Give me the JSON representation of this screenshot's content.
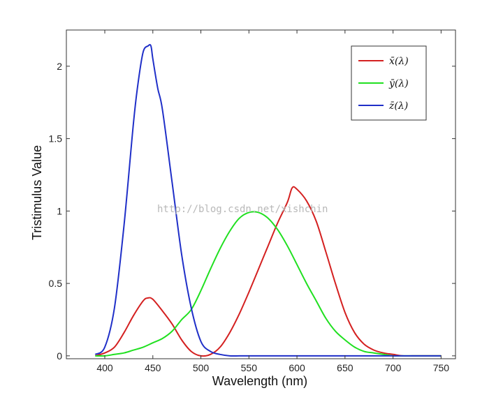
{
  "chart_data": {
    "type": "line",
    "title": "",
    "xlabel": "Wavelength (nm)",
    "ylabel": "Tristimulus Value",
    "xlim": [
      360,
      765
    ],
    "ylim": [
      -0.02,
      2.25
    ],
    "xticks": [
      400,
      450,
      500,
      550,
      600,
      650,
      700,
      750
    ],
    "yticks": [
      0,
      0.5,
      1,
      1.5,
      2
    ],
    "ytick_labels": [
      "0",
      "0.5",
      "1",
      "1.5",
      "2"
    ],
    "grid": false,
    "legend_position": "top-right",
    "series": [
      {
        "name": "x̄(λ)",
        "color": "#d42020",
        "x": [
          390,
          400,
          410,
          420,
          430,
          440,
          445,
          450,
          460,
          470,
          480,
          490,
          500,
          510,
          520,
          530,
          540,
          550,
          560,
          570,
          580,
          590,
          595,
          600,
          610,
          620,
          630,
          640,
          650,
          660,
          670,
          680,
          690,
          700,
          710,
          720,
          730,
          740,
          750
        ],
        "y": [
          0.0,
          0.02,
          0.06,
          0.16,
          0.28,
          0.38,
          0.4,
          0.39,
          0.31,
          0.22,
          0.11,
          0.03,
          0.0,
          0.01,
          0.06,
          0.16,
          0.29,
          0.44,
          0.6,
          0.76,
          0.92,
          1.06,
          1.16,
          1.15,
          1.07,
          0.93,
          0.72,
          0.5,
          0.3,
          0.16,
          0.08,
          0.04,
          0.02,
          0.01,
          0.0,
          0.0,
          0.0,
          0.0,
          0.0
        ]
      },
      {
        "name": "ȳ(λ)",
        "color": "#20e020",
        "x": [
          390,
          400,
          410,
          420,
          430,
          440,
          450,
          460,
          470,
          480,
          490,
          500,
          510,
          520,
          530,
          540,
          550,
          560,
          570,
          580,
          590,
          600,
          610,
          620,
          630,
          640,
          650,
          660,
          670,
          680,
          690,
          700,
          710,
          720,
          730,
          740,
          750
        ],
        "y": [
          0.0,
          0.0,
          0.01,
          0.02,
          0.04,
          0.06,
          0.09,
          0.12,
          0.17,
          0.25,
          0.32,
          0.45,
          0.6,
          0.74,
          0.86,
          0.95,
          0.99,
          0.99,
          0.95,
          0.87,
          0.76,
          0.63,
          0.5,
          0.38,
          0.26,
          0.17,
          0.11,
          0.06,
          0.03,
          0.02,
          0.01,
          0.0,
          0.0,
          0.0,
          0.0,
          0.0,
          0.0
        ]
      },
      {
        "name": "z̄(λ)",
        "color": "#1f2fc8",
        "x": [
          390,
          400,
          410,
          420,
          430,
          435,
          440,
          445,
          448,
          450,
          455,
          460,
          470,
          480,
          490,
          500,
          510,
          520,
          530,
          540,
          550,
          560,
          580,
          600,
          650,
          700,
          750
        ],
        "y": [
          0.01,
          0.06,
          0.33,
          0.9,
          1.62,
          1.9,
          2.1,
          2.14,
          2.14,
          2.05,
          1.85,
          1.7,
          1.2,
          0.7,
          0.33,
          0.1,
          0.03,
          0.01,
          0.0,
          0.0,
          0.0,
          0.0,
          0.0,
          0.0,
          0.0,
          0.0,
          0.0
        ]
      }
    ]
  },
  "watermark": "http://blog.csdn.net/xishchin"
}
